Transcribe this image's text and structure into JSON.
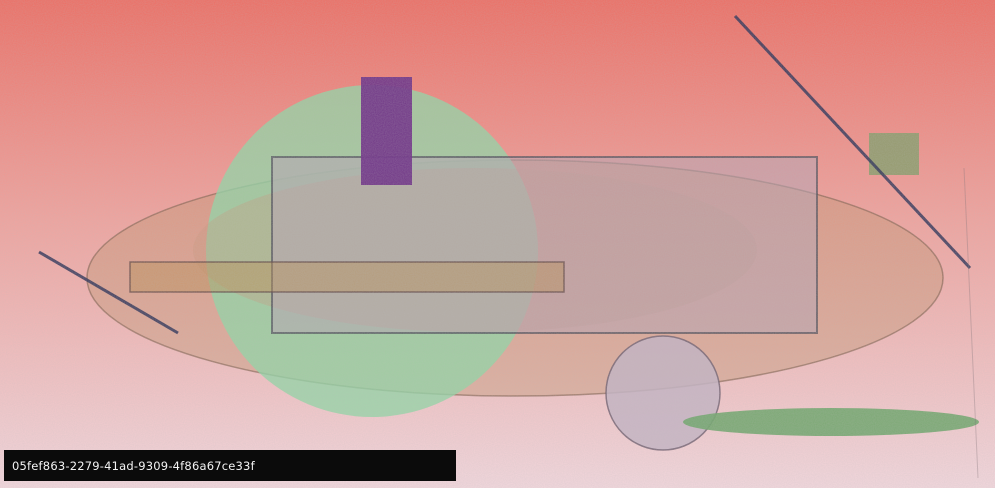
{
  "label": {
    "text": "05fef863-2279-41ad-9309-4f86a67ce33f"
  },
  "colors": {
    "background_top": "#ee6d63",
    "background_bottom": "#f3d7dd",
    "green_circle": "#8fd6a4",
    "tan_ellipse": "#c2916c",
    "purple_rect": "#6e2f86",
    "olive_square": "#8d9b6b",
    "lavender_circle": "#c4b3c3",
    "green_ellipse": "#6fa56a",
    "line": "#2b2f55",
    "label_background": "#0b0b0b",
    "label_text": "#f4f4f4"
  }
}
